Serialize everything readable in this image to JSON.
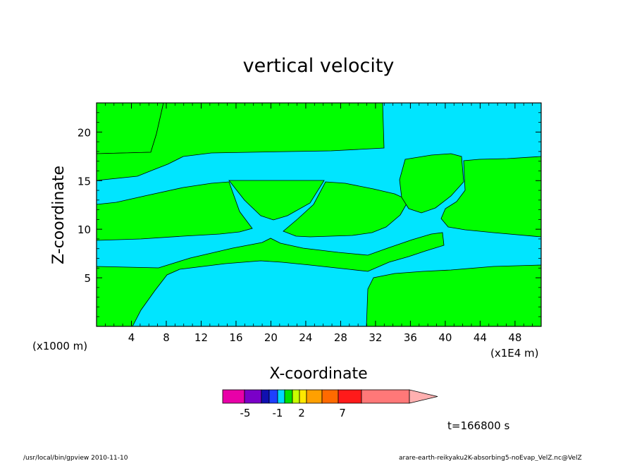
{
  "chart_data": {
    "type": "heatmap",
    "title": "vertical velocity",
    "xlabel": "X-coordinate",
    "ylabel": "Z-coordinate",
    "x_unit": "(x1E4 m)",
    "y_unit": "(x1000 m)",
    "xlim": [
      0,
      51
    ],
    "ylim": [
      0,
      23
    ],
    "x_ticks": [
      4,
      8,
      12,
      16,
      20,
      24,
      28,
      32,
      36,
      40,
      44,
      48
    ],
    "y_ticks": [
      5,
      10,
      15,
      20
    ],
    "colors": {
      "positive": "#00ff00",
      "negative": "#00e5ff",
      "contour": "#000000"
    },
    "colorbar": {
      "colors": [
        "#e800a8",
        "#7a00c8",
        "#1010b0",
        "#1e40ff",
        "#00d8ff",
        "#00e000",
        "#c8ff00",
        "#ffe800",
        "#ffa000",
        "#ff6a00",
        "#ff1a1a",
        "#ff7878",
        "#ffb0b0"
      ],
      "tick_labels": [
        "-5",
        "-1",
        "2",
        "7"
      ]
    },
    "time_label": "t=166800 s"
  },
  "footer": {
    "left": "/usr/local/bin/gpview  2010-11-10",
    "right": "arare-earth-reikyaku2K-absorbing5-noEvap_VelZ.nc@VelZ"
  }
}
